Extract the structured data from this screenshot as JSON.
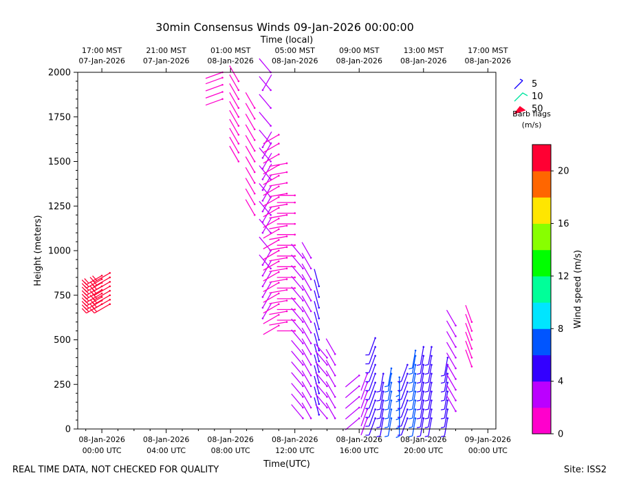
{
  "chart_data": {
    "type": "wind-barb",
    "title": "30min Consensus Winds 09-Jan-2026 00:00:00",
    "xlabel": "Time(UTC)",
    "x2label": "Time (local)",
    "ylabel": "Height (meters)",
    "colorbar_label": "Wind speed (m/s)",
    "footer_left": "REAL TIME DATA, NOT CHECKED FOR QUALITY",
    "footer_right": "Site: ISS2",
    "ylim": [
      0,
      2000
    ],
    "yticks": [
      0,
      250,
      500,
      750,
      1000,
      1250,
      1500,
      1750,
      2000
    ],
    "xlim": [
      "2026-01-07 22:30",
      "2026-01-09 00:30"
    ],
    "xticks_utc": [
      {
        "time": "2026-01-08 00:00",
        "line1": "08-Jan-2026",
        "line2": "00:00 UTC"
      },
      {
        "time": "2026-01-08 04:00",
        "line1": "08-Jan-2026",
        "line2": "04:00 UTC"
      },
      {
        "time": "2026-01-08 08:00",
        "line1": "08-Jan-2026",
        "line2": "08:00 UTC"
      },
      {
        "time": "2026-01-08 12:00",
        "line1": "08-Jan-2026",
        "line2": "12:00 UTC"
      },
      {
        "time": "2026-01-08 16:00",
        "line1": "08-Jan-2026",
        "line2": "16:00 UTC"
      },
      {
        "time": "2026-01-08 20:00",
        "line1": "08-Jan-2026",
        "line2": "20:00 UTC"
      },
      {
        "time": "2026-01-09 00:00",
        "line1": "09-Jan-2026",
        "line2": "00:00 UTC"
      }
    ],
    "xticks_local": [
      {
        "time": "2026-01-08 00:00",
        "line1": "17:00 MST",
        "line2": "07-Jan-2026"
      },
      {
        "time": "2026-01-08 04:00",
        "line1": "21:00 MST",
        "line2": "07-Jan-2026"
      },
      {
        "time": "2026-01-08 08:00",
        "line1": "01:00 MST",
        "line2": "08-Jan-2026"
      },
      {
        "time": "2026-01-08 12:00",
        "line1": "05:00 MST",
        "line2": "08-Jan-2026"
      },
      {
        "time": "2026-01-08 16:00",
        "line1": "09:00 MST",
        "line2": "08-Jan-2026"
      },
      {
        "time": "2026-01-08 20:00",
        "line1": "13:00 MST",
        "line2": "08-Jan-2026"
      },
      {
        "time": "2026-01-09 00:00",
        "line1": "17:00 MST",
        "line2": "08-Jan-2026"
      }
    ],
    "barb_legend": {
      "title": "Barb flags",
      "units": "(m/s)",
      "items": [
        {
          "label": "5",
          "color": "#1400ff"
        },
        {
          "label": "10",
          "color": "#00e5a0"
        },
        {
          "label": "50",
          "color": "#ff0033"
        }
      ]
    },
    "colorbar": {
      "ticks": [
        "0",
        "4",
        "8",
        "12",
        "16",
        "20"
      ],
      "range": [
        0,
        22
      ],
      "bin_width": 2,
      "colors": [
        "#ff00cc",
        "#bb00ff",
        "#3300ff",
        "#0055ff",
        "#00e5ff",
        "#00ff99",
        "#00ff00",
        "#88ff00",
        "#ffe600",
        "#ff6600",
        "#ff0033"
      ]
    },
    "columns": [
      {
        "time": "2026-01-08 00:00",
        "heights": [
          700,
          720,
          740,
          760,
          780,
          800,
          820,
          840,
          860
        ],
        "speed": 21,
        "dir": 240
      },
      {
        "time": "2026-01-08 00:30",
        "heights": [
          700,
          725,
          750,
          775,
          800,
          825,
          850,
          875
        ],
        "speed": 21,
        "dir": 240
      },
      {
        "time": "2026-01-08 07:30",
        "heights": [
          1850,
          1890,
          1930,
          1970,
          2000
        ],
        "speed": 1,
        "dir": 250
      },
      {
        "time": "2026-01-08 08:30",
        "heights": [
          1500,
          1550,
          1600,
          1650,
          1700,
          1750,
          1800,
          1850,
          1900,
          1950
        ],
        "speed": 1,
        "dir": 330
      },
      {
        "time": "2026-01-08 09:30",
        "heights": [
          1200,
          1260,
          1320,
          1380,
          1440,
          1500,
          1560,
          1620,
          1680,
          1740,
          1800
        ],
        "speed": 1,
        "dir": 330
      },
      {
        "time": "2026-01-08 10:00",
        "heights": [
          620,
          680,
          740,
          800,
          860,
          920,
          1100,
          1160,
          1220,
          1280,
          1340,
          1400,
          1460,
          1520,
          1580,
          1900
        ],
        "speed": 3,
        "dir": 30
      },
      {
        "time": "2026-01-08 10:30",
        "heights": [
          900,
          1000,
          1100,
          1200,
          1300,
          1400,
          1500,
          1600,
          1700,
          1800,
          1900,
          2000
        ],
        "speed": 3,
        "dir": 320
      },
      {
        "time": "2026-01-08 11:00",
        "heights": [
          580,
          640,
          700,
          760,
          820,
          880,
          940,
          1000,
          1060,
          1120,
          1180,
          1240,
          1300,
          1360,
          1420,
          1480,
          1540,
          1600,
          1650
        ],
        "speed": 1,
        "dir": 240
      },
      {
        "time": "2026-01-08 11:30",
        "heights": [
          600,
          660,
          720,
          780,
          840,
          900,
          960,
          1020,
          1080,
          1140,
          1200,
          1260,
          1320,
          1380,
          1440,
          1490
        ],
        "speed": 1,
        "dir": 260
      },
      {
        "time": "2026-01-08 12:00",
        "heights": [
          550,
          610,
          670,
          730,
          790,
          850,
          910,
          970,
          1030,
          1090,
          1150,
          1210,
          1270,
          1310
        ],
        "speed": 1,
        "dir": 270
      },
      {
        "time": "2026-01-08 12:30",
        "heights": [
          60,
          120,
          180,
          240,
          300,
          360,
          420,
          480,
          540,
          600,
          660,
          720,
          780,
          840,
          900,
          960
        ],
        "speed": 2,
        "dir": 320
      },
      {
        "time": "2026-01-08 13:00",
        "heights": [
          60,
          120,
          180,
          240,
          300,
          360,
          420,
          480,
          540,
          600,
          660,
          720,
          780,
          840,
          900,
          960
        ],
        "speed": 3,
        "dir": 330
      },
      {
        "time": "2026-01-08 13:30",
        "heights": [
          80,
          140,
          200,
          260,
          320,
          380,
          440,
          500,
          560,
          620,
          680,
          740,
          800
        ],
        "speed": 4,
        "dir": 345
      },
      {
        "time": "2026-01-08 14:00",
        "heights": [
          60,
          120,
          180,
          240,
          300,
          360,
          400
        ],
        "speed": 2,
        "dir": 320
      },
      {
        "time": "2026-01-08 14:30",
        "heights": [
          60,
          120,
          180,
          240,
          300,
          360,
          420
        ],
        "speed": 2,
        "dir": 330
      },
      {
        "time": "2026-01-08 16:00",
        "heights": [
          60,
          120,
          180,
          240,
          300
        ],
        "speed": 3,
        "dir": 230
      },
      {
        "time": "2026-01-08 16:30",
        "heights": [
          60,
          110,
          160,
          210,
          260,
          310
        ],
        "speed": 2,
        "dir": 200
      },
      {
        "time": "2026-01-08 17:00",
        "heights": [
          60,
          110,
          160,
          210,
          260,
          310,
          360,
          410,
          460,
          510
        ],
        "speed": 5,
        "dir": 200
      },
      {
        "time": "2026-01-08 17:30",
        "heights": [
          60,
          110,
          160,
          210,
          260,
          310
        ],
        "speed": 5,
        "dir": 190
      },
      {
        "time": "2026-01-08 18:00",
        "heights": [
          60,
          110,
          160,
          210,
          260,
          310,
          340
        ],
        "speed": 6,
        "dir": 190
      },
      {
        "time": "2026-01-08 18:30",
        "heights": [
          60,
          110,
          160,
          210,
          260,
          290
        ],
        "speed": 7,
        "dir": 180
      },
      {
        "time": "2026-01-08 19:00",
        "heights": [
          60,
          110,
          160,
          210,
          260,
          310,
          360
        ],
        "speed": 5,
        "dir": 200
      },
      {
        "time": "2026-01-08 19:30",
        "heights": [
          60,
          110,
          160,
          210,
          260,
          310,
          360,
          410,
          440
        ],
        "speed": 7,
        "dir": 190
      },
      {
        "time": "2026-01-08 20:00",
        "heights": [
          60,
          110,
          160,
          210,
          260,
          310,
          360,
          410,
          460
        ],
        "speed": 5,
        "dir": 190
      },
      {
        "time": "2026-01-08 20:30",
        "heights": [
          60,
          110,
          160,
          210,
          260,
          310,
          360,
          410,
          460
        ],
        "speed": 5,
        "dir": 190
      },
      {
        "time": "2026-01-08 21:30",
        "heights": [
          60,
          110,
          160,
          210,
          260,
          310,
          360,
          400
        ],
        "speed": 5,
        "dir": 190
      },
      {
        "time": "2026-01-08 22:00",
        "heights": [
          100,
          160,
          220,
          280,
          340,
          400,
          460,
          520,
          580
        ],
        "speed": 2,
        "dir": 330
      },
      {
        "time": "2026-01-08 23:00",
        "heights": [
          350,
          400,
          450,
          500,
          550,
          600
        ],
        "speed": 1,
        "dir": 340
      }
    ]
  }
}
